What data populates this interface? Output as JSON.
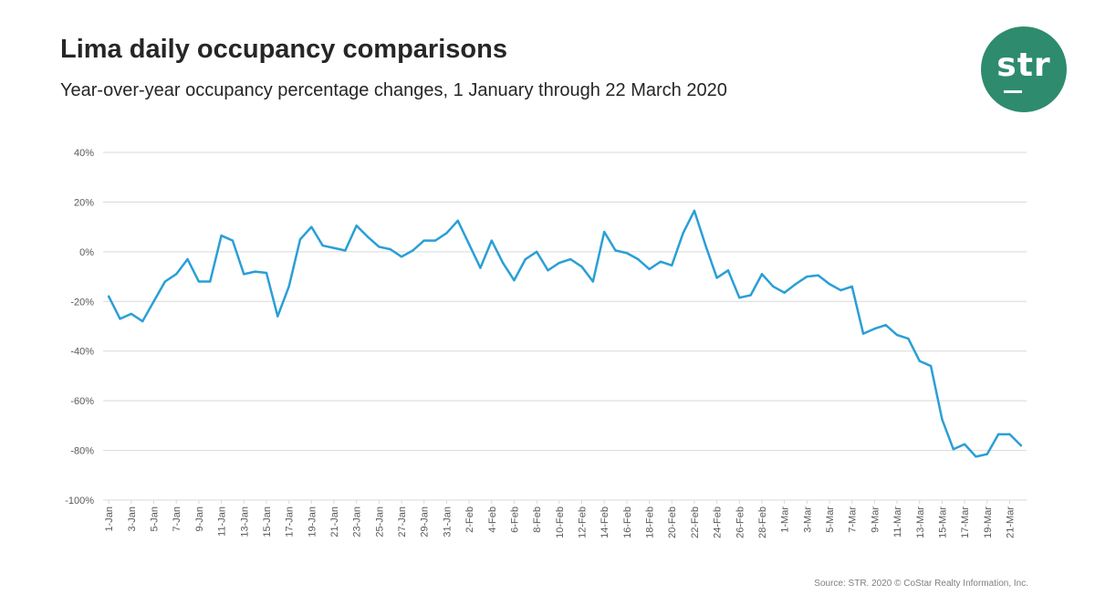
{
  "header": {
    "title": "Lima daily occupancy comparisons",
    "subtitle": "Year-over-year occupancy percentage changes, 1 January through 22 March 2020"
  },
  "logo": {
    "text": "str",
    "color": "#2e8b6e"
  },
  "source": "Source: STR. 2020 © CoStar Realty Information, Inc.",
  "chart_data": {
    "type": "line",
    "title": "",
    "xlabel": "",
    "ylabel": "",
    "ylim": [
      -100,
      40
    ],
    "y_ticks": [
      40,
      20,
      0,
      -20,
      -40,
      -60,
      -80,
      -100
    ],
    "y_tick_labels": [
      "40%",
      "20%",
      "0%",
      "-20%",
      "-40%",
      "-60%",
      "-80%",
      "-100%"
    ],
    "x_tick_labels": [
      "1-Jan",
      "3-Jan",
      "5-Jan",
      "7-Jan",
      "9-Jan",
      "11-Jan",
      "13-Jan",
      "15-Jan",
      "17-Jan",
      "19-Jan",
      "21-Jan",
      "23-Jan",
      "25-Jan",
      "27-Jan",
      "29-Jan",
      "31-Jan",
      "2-Feb",
      "4-Feb",
      "6-Feb",
      "8-Feb",
      "10-Feb",
      "12-Feb",
      "14-Feb",
      "16-Feb",
      "18-Feb",
      "20-Feb",
      "22-Feb",
      "24-Feb",
      "26-Feb",
      "28-Feb",
      "1-Mar",
      "3-Mar",
      "5-Mar",
      "7-Mar",
      "9-Mar",
      "11-Mar",
      "13-Mar",
      "15-Mar",
      "17-Mar",
      "19-Mar",
      "21-Mar"
    ],
    "grid": true,
    "legend": "none",
    "series_color": "#2a9fd6",
    "series": [
      {
        "values": [
          -18,
          -27,
          -25,
          -28,
          -20,
          -12,
          -9,
          -3,
          -12,
          -12,
          6.5,
          4.5,
          -9,
          -8,
          -8.5,
          -26,
          -14,
          5,
          10,
          2.5,
          1.5,
          0.5,
          10.5,
          6,
          2,
          1,
          -2,
          0.5,
          4.5,
          4.5,
          7.5,
          12.5,
          3,
          -6.5,
          4.5,
          -4.5,
          -11.5,
          -3,
          0,
          -7.5,
          -4.5,
          -3,
          -6,
          -12,
          8,
          0.5,
          -0.5,
          -3,
          -7,
          -4,
          -5.5,
          7.5,
          16.5,
          2.5,
          -10.5,
          -7.5,
          -18.5,
          -17.5,
          -9,
          -14,
          -16.5,
          -13,
          -10,
          -9.5,
          -13,
          -15.5,
          -14,
          -33,
          -31,
          -29.5,
          -33.5,
          -35,
          -44,
          -46,
          -67.5,
          -79.5,
          -77.5,
          -82.5,
          -81.5,
          -73.5,
          -73.5,
          -78
        ]
      }
    ]
  }
}
